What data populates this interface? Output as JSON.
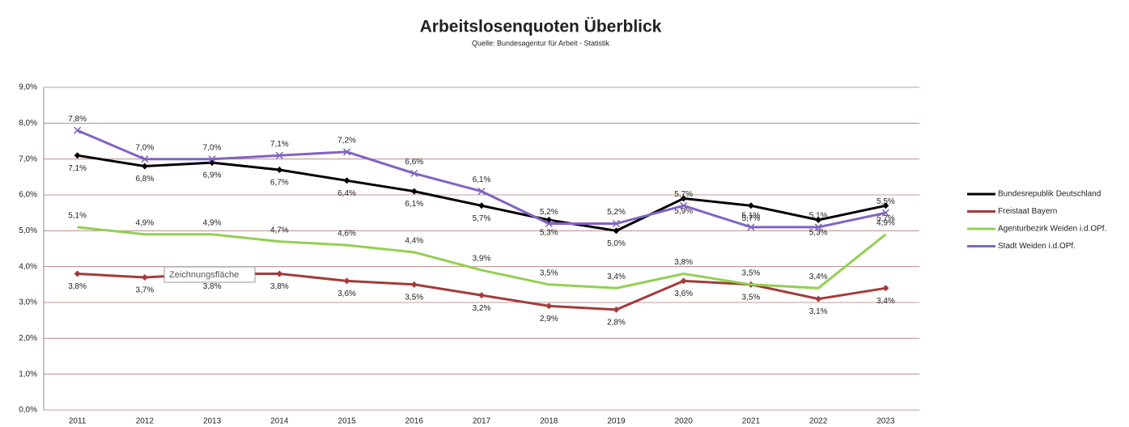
{
  "chart_data": {
    "type": "line",
    "title": "Arbeitslosenquoten Überblick",
    "subtitle": "Quelle: Bundesagentur für Arbeit - Statistik",
    "annotation": "Zeichnungsfläche",
    "categories": [
      "2011",
      "2012",
      "2013",
      "2014",
      "2015",
      "2016",
      "2017",
      "2018",
      "2019",
      "2020",
      "2021",
      "2022",
      "2023"
    ],
    "ylim": [
      0,
      9
    ],
    "yticks": [
      {
        "value": 0,
        "label": "0,0%"
      },
      {
        "value": 1,
        "label": "1,0%"
      },
      {
        "value": 2,
        "label": "2,0%"
      },
      {
        "value": 3,
        "label": "3,0%"
      },
      {
        "value": 4,
        "label": "4,0%"
      },
      {
        "value": 5,
        "label": "5,0%"
      },
      {
        "value": 6,
        "label": "6,0%"
      },
      {
        "value": 7,
        "label": "7,0%"
      },
      {
        "value": 8,
        "label": "8,0%"
      },
      {
        "value": 9,
        "label": "9,0%"
      }
    ],
    "grid": true,
    "legend": "right",
    "series": [
      {
        "name": "Bundesrepublik Deutschland",
        "color": "#000000",
        "marker": "diamond",
        "values": [
          7.1,
          6.8,
          6.9,
          6.7,
          6.4,
          6.1,
          5.7,
          5.3,
          5.0,
          5.9,
          5.7,
          5.3,
          5.7
        ],
        "value_labels": [
          "7,1%",
          "6,8%",
          "6,9%",
          "6,7%",
          "6,4%",
          "6,1%",
          "5,7%",
          "5,3%",
          "5,0%",
          "5,9%",
          "5,7%",
          "5,3%",
          "5,7%"
        ]
      },
      {
        "name": "Freistaat Bayern",
        "color": "#a33b3b",
        "marker": "diamond",
        "values": [
          3.8,
          3.7,
          3.8,
          3.8,
          3.6,
          3.5,
          3.2,
          2.9,
          2.8,
          3.6,
          3.5,
          3.1,
          3.4
        ],
        "value_labels": [
          "3,8%",
          "3,7%",
          "3,8%",
          "3,8%",
          "3,6%",
          "3,5%",
          "3,2%",
          "2,9%",
          "2,8%",
          "3,6%",
          "3,5%",
          "3,1%",
          "3,4%"
        ]
      },
      {
        "name": "Agenturbezirk Weiden i.d.OPf.",
        "color": "#92d050",
        "marker": "none",
        "values": [
          5.1,
          4.9,
          4.9,
          4.7,
          4.6,
          4.4,
          3.9,
          3.5,
          3.4,
          3.8,
          3.5,
          3.4,
          4.9
        ],
        "value_labels": [
          "5,1%",
          "4,9%",
          "4,9%",
          "4,7%",
          "4,6%",
          "4,4%",
          "3,9%",
          "3,5%",
          "3,4%",
          "3,8%",
          "3,5%",
          "3,4%",
          "4,9%"
        ]
      },
      {
        "name": "Stadt Weiden i.d.OPf.",
        "color": "#8064c2",
        "marker": "x",
        "values": [
          7.8,
          7.0,
          7.0,
          7.1,
          7.2,
          6.6,
          6.1,
          5.2,
          5.2,
          5.7,
          5.1,
          5.1,
          5.5
        ],
        "value_labels": [
          "7,8%",
          "7,0%",
          "7,0%",
          "7,1%",
          "7,2%",
          "6,6%",
          "6,1%",
          "5,2%",
          "5,2%",
          "5,7%",
          "5,1%",
          "5,1%",
          "5,5%"
        ]
      }
    ]
  }
}
